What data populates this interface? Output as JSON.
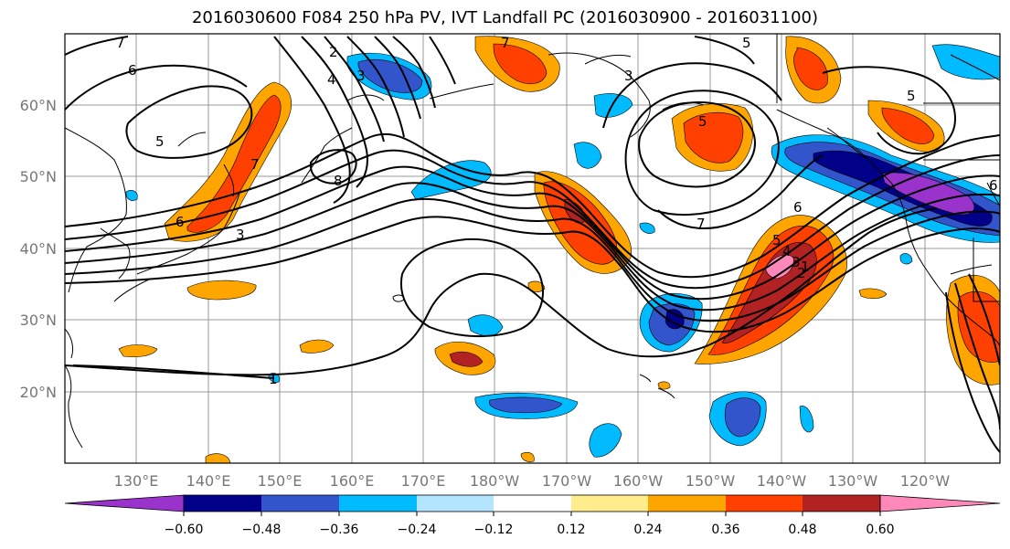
{
  "title": "2016030600 F084 250 hPa PV, IVT Landfall PC (2016030900 - 2016031100)",
  "lat_labels": [
    "60°N",
    "50°N",
    "40°N",
    "30°N",
    "20°N"
  ],
  "lon_labels": [
    "130°E",
    "140°E",
    "150°E",
    "160°E",
    "170°E",
    "180°W",
    "170°W",
    "160°W",
    "150°W",
    "140°W",
    "130°W",
    "120°W"
  ],
  "colorbar": {
    "ticks": [
      "−0.60",
      "−0.48",
      "−0.36",
      "−0.24",
      "−0.12",
      "0.12",
      "0.24",
      "0.36",
      "0.48",
      "0.60"
    ],
    "colors": [
      "#9933cc",
      "#000088",
      "#3355cc",
      "#00bbff",
      "#b3e5ff",
      "#ffffff",
      "#ffec8c",
      "#ffa500",
      "#ff4000",
      "#b22222",
      "#ff88bb"
    ]
  },
  "contour_labels": [
    "7",
    "6",
    "5",
    "2",
    "3",
    "4",
    "8",
    "7",
    "6",
    "3",
    "5",
    "3",
    "5",
    "7",
    "6",
    "5",
    "4",
    "3",
    "2",
    "1",
    "6",
    "1",
    "7",
    "5"
  ]
}
